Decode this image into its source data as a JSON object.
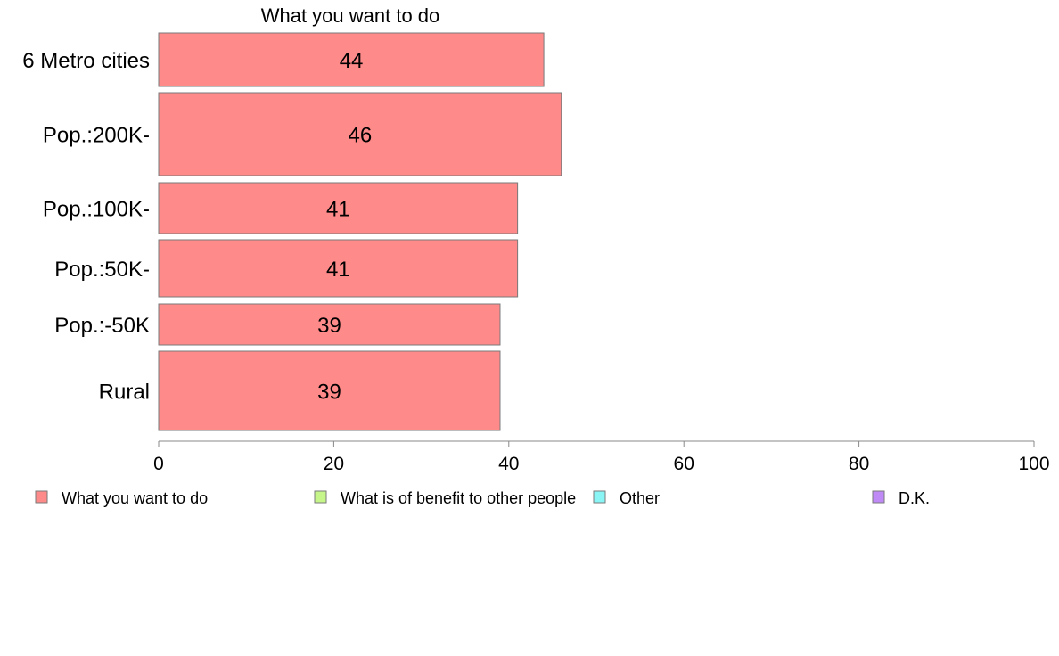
{
  "chart_data": {
    "type": "bar",
    "orientation": "horizontal",
    "title": "What you want to do",
    "xlabel": "",
    "ylabel": "",
    "xlim": [
      0,
      100
    ],
    "x_ticks": [
      0,
      20,
      40,
      60,
      80,
      100
    ],
    "categories": [
      "6 Metro cities",
      "Pop.:200K-",
      "Pop.:100K-",
      "Pop.:50K-",
      "Pop.:-50K",
      "Rural"
    ],
    "series": [
      {
        "name": "What you want to do",
        "values": [
          44,
          46,
          41,
          41,
          39,
          39
        ],
        "color": "#ff8a8a"
      }
    ],
    "data_labels": [
      "44",
      "46",
      "41",
      "41",
      "39",
      "39"
    ],
    "grid": false,
    "legend_position": "bottom",
    "legend": [
      {
        "label": "What you want to do",
        "color": "#ff8a8a"
      },
      {
        "label": "What is of benefit to other people",
        "color": "#c6f58a"
      },
      {
        "label": "Other",
        "color": "#8af5f5"
      },
      {
        "label": "D.K.",
        "color": "#bf8af5"
      }
    ]
  }
}
